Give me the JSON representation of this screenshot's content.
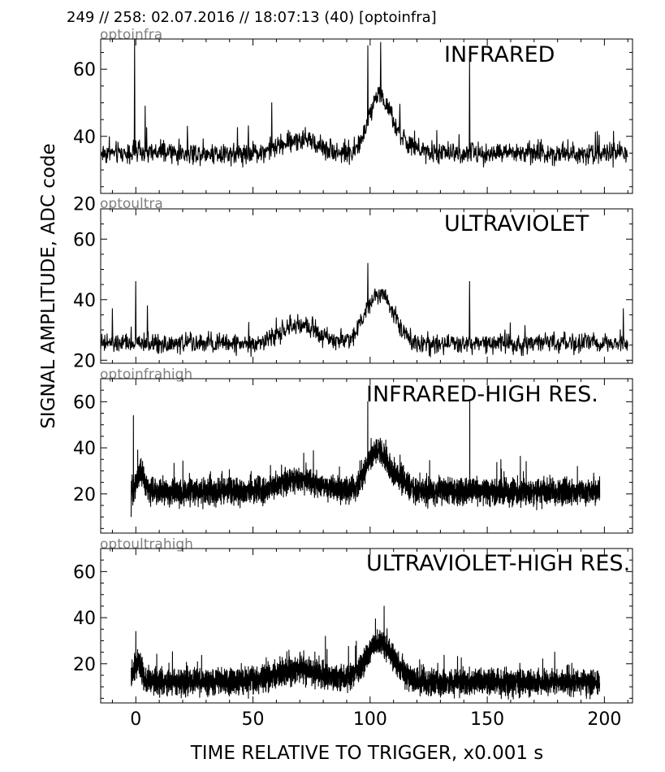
{
  "header": {
    "text": "249 // 258:   02.07.2016 // 18:07:13 (40)  [optoinfra]"
  },
  "ylabel": "SIGNAL AMPLITUDE,  ADC code",
  "xlabel": "TIME RELATIVE TO TRIGGER,   x0.001 s",
  "chart_data": [
    {
      "type": "line",
      "channel": "optoinfra",
      "title": "INFRARED",
      "xlim": [
        -15,
        212
      ],
      "ylim": [
        23,
        69
      ],
      "yticks": [
        20,
        40,
        60
      ],
      "xticks": [
        0,
        50,
        100,
        150,
        200
      ],
      "x_range": [
        -15,
        210
      ],
      "points": 1400,
      "baseline": 35,
      "noise": 3.5,
      "features": [
        {
          "x": 70,
          "amp": 4,
          "w": 8
        },
        {
          "x": 103,
          "amp": 15,
          "w": 4
        },
        {
          "x": 110,
          "amp": 6,
          "w": 5
        }
      ],
      "spikes": [
        {
          "x": -0.5,
          "y": 69
        },
        {
          "x": 4,
          "y": 49
        },
        {
          "x": 58,
          "y": 50
        },
        {
          "x": 99,
          "y": 67
        },
        {
          "x": 104.5,
          "y": 68
        },
        {
          "x": 142.5,
          "y": 63
        }
      ]
    },
    {
      "type": "line",
      "channel": "optoultra",
      "title": "ULTRAVIOLET",
      "xlim": [
        -15,
        212
      ],
      "ylim": [
        19,
        70
      ],
      "yticks": [
        20,
        40,
        60
      ],
      "xticks": [
        0,
        50,
        100,
        150,
        200
      ],
      "x_range": [
        -15,
        210
      ],
      "points": 1400,
      "baseline": 25.5,
      "noise": 3.5,
      "features": [
        {
          "x": 70,
          "amp": 6,
          "w": 8
        },
        {
          "x": 104,
          "amp": 17,
          "w": 6
        }
      ],
      "spikes": [
        {
          "x": -10,
          "y": 37
        },
        {
          "x": 0,
          "y": 46
        },
        {
          "x": 5,
          "y": 38
        },
        {
          "x": 99,
          "y": 52
        },
        {
          "x": 142.5,
          "y": 46
        },
        {
          "x": 208,
          "y": 37
        }
      ]
    },
    {
      "type": "line",
      "channel": "optoinfrahigh",
      "title": "INFRARED-HIGH RES.",
      "xlim": [
        -15,
        212
      ],
      "ylim": [
        3,
        70
      ],
      "yticks": [
        20,
        40,
        60
      ],
      "xticks": [
        0,
        50,
        100,
        150,
        200
      ],
      "x_range": [
        -2,
        198
      ],
      "points": 4500,
      "baseline": 21,
      "noise": 6,
      "features": [
        {
          "x": 2,
          "amp": 9,
          "w": 1.5
        },
        {
          "x": 70,
          "amp": 5,
          "w": 8
        },
        {
          "x": 102,
          "amp": 16,
          "w": 4
        },
        {
          "x": 110,
          "amp": 6,
          "w": 5
        }
      ],
      "spikes": [
        {
          "x": -1,
          "y": 54
        },
        {
          "x": -2,
          "y": 10
        },
        {
          "x": 99,
          "y": 60
        },
        {
          "x": 142.5,
          "y": 61
        }
      ]
    },
    {
      "type": "line",
      "channel": "optoultrahigh",
      "title": "ULTRAVIOLET-HIGH RES.",
      "xlim": [
        -15,
        212
      ],
      "ylim": [
        3,
        70
      ],
      "yticks": [
        20,
        40,
        60
      ],
      "xticks": [
        0,
        50,
        100,
        150,
        200
      ],
      "x_range": [
        -2,
        198
      ],
      "points": 4500,
      "baseline": 12,
      "noise": 6,
      "features": [
        {
          "x": 1,
          "amp": 9,
          "w": 1.5
        },
        {
          "x": 70,
          "amp": 5,
          "w": 10
        },
        {
          "x": 104,
          "amp": 17,
          "w": 6
        }
      ],
      "spikes": [
        {
          "x": 0,
          "y": 34
        },
        {
          "x": 106,
          "y": 45
        }
      ]
    }
  ]
}
